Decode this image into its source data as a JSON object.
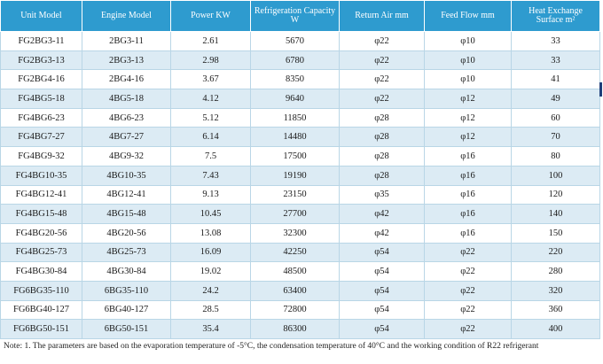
{
  "headers": {
    "unit_model": "Unit Model",
    "engine_model": "Engine Model",
    "power": "Power KW",
    "refrigeration_line1": "Refrigeration Capacity",
    "refrigeration_line2": "W",
    "return_air": "Return Air mm",
    "feed_flow": "Feed Flow mm",
    "heat_line1": "Heat Exchange",
    "heat_line2": "Surface m²"
  },
  "rows": [
    {
      "unit": "FG2BG3-11",
      "engine": "2BG3-11",
      "power": "2.61",
      "capacity": "5670",
      "return_air": "φ22",
      "feed_flow": "φ10",
      "surface": "33"
    },
    {
      "unit": "FG2BG3-13",
      "engine": "2BG3-13",
      "power": "2.98",
      "capacity": "6780",
      "return_air": "φ22",
      "feed_flow": "φ10",
      "surface": "33"
    },
    {
      "unit": "FG2BG4-16",
      "engine": "2BG4-16",
      "power": "3.67",
      "capacity": "8350",
      "return_air": "φ22",
      "feed_flow": "φ10",
      "surface": "41"
    },
    {
      "unit": "FG4BG5-18",
      "engine": "4BG5-18",
      "power": "4.12",
      "capacity": "9640",
      "return_air": "φ22",
      "feed_flow": "φ12",
      "surface": "49"
    },
    {
      "unit": "FG4BG6-23",
      "engine": "4BG6-23",
      "power": "5.12",
      "capacity": "11850",
      "return_air": "φ28",
      "feed_flow": "φ12",
      "surface": "60"
    },
    {
      "unit": "FG4BG7-27",
      "engine": "4BG7-27",
      "power": "6.14",
      "capacity": "14480",
      "return_air": "φ28",
      "feed_flow": "φ12",
      "surface": "70"
    },
    {
      "unit": "FG4BG9-32",
      "engine": "4BG9-32",
      "power": "7.5",
      "capacity": "17500",
      "return_air": "φ28",
      "feed_flow": "φ16",
      "surface": "80"
    },
    {
      "unit": "FG4BG10-35",
      "engine": "4BG10-35",
      "power": "7.43",
      "capacity": "19190",
      "return_air": "φ28",
      "feed_flow": "φ16",
      "surface": "100"
    },
    {
      "unit": "FG4BG12-41",
      "engine": "4BG12-41",
      "power": "9.13",
      "capacity": "23150",
      "return_air": "φ35",
      "feed_flow": "φ16",
      "surface": "120"
    },
    {
      "unit": "FG4BG15-48",
      "engine": "4BG15-48",
      "power": "10.45",
      "capacity": "27700",
      "return_air": "φ42",
      "feed_flow": "φ16",
      "surface": "140"
    },
    {
      "unit": "FG4BG20-56",
      "engine": "4BG20-56",
      "power": "13.08",
      "capacity": "32300",
      "return_air": "φ42",
      "feed_flow": "φ16",
      "surface": "150"
    },
    {
      "unit": "FG4BG25-73",
      "engine": "4BG25-73",
      "power": "16.09",
      "capacity": "42250",
      "return_air": "φ54",
      "feed_flow": "φ22",
      "surface": "220"
    },
    {
      "unit": "FG4BG30-84",
      "engine": "4BG30-84",
      "power": "19.02",
      "capacity": "48500",
      "return_air": "φ54",
      "feed_flow": "φ22",
      "surface": "280"
    },
    {
      "unit": "FG6BG35-110",
      "engine": "6BG35-110",
      "power": "24.2",
      "capacity": "63400",
      "return_air": "φ54",
      "feed_flow": "φ22",
      "surface": "320"
    },
    {
      "unit": "FG6BG40-127",
      "engine": "6BG40-127",
      "power": "28.5",
      "capacity": "72800",
      "return_air": "φ54",
      "feed_flow": "φ22",
      "surface": "360"
    },
    {
      "unit": "FG6BG50-151",
      "engine": "6BG50-151",
      "power": "35.4",
      "capacity": "86300",
      "return_air": "φ54",
      "feed_flow": "φ22",
      "surface": "400"
    }
  ],
  "note": "Note: 1. The parameters are based on the evaporation temperature of -5°C, the condensation temperature of 40°C and the working condition of R22 refrigerant",
  "colors": {
    "header_bg": "#2e9bcf",
    "row_alt_bg": "#dcebf4"
  }
}
